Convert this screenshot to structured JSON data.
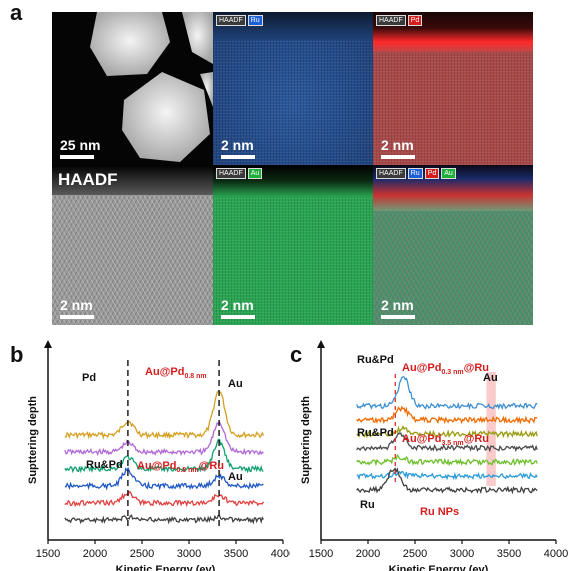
{
  "panel_a": {
    "letter": "a",
    "tiles": [
      {
        "name": "haadf-overview",
        "scale": "25 nm",
        "tags": []
      },
      {
        "name": "ru-map",
        "scale": "2 nm",
        "tags": [
          {
            "text": "HAADF",
            "color": "#3a3a3a"
          },
          {
            "text": "Ru",
            "color": "#1d5fd6"
          }
        ]
      },
      {
        "name": "pd-map",
        "scale": "2 nm",
        "tags": [
          {
            "text": "HAADF",
            "color": "#3a3a3a"
          },
          {
            "text": "Pd",
            "color": "#d61d1d"
          }
        ]
      },
      {
        "name": "haadf-lattice",
        "scale": "2 nm",
        "label": "HAADF",
        "tags": []
      },
      {
        "name": "au-map",
        "scale": "2 nm",
        "tags": [
          {
            "text": "HAADF",
            "color": "#3a3a3a"
          },
          {
            "text": "Au",
            "color": "#1fae3a"
          }
        ]
      },
      {
        "name": "overlay-map",
        "scale": "2 nm",
        "tags": [
          {
            "text": "HAADF",
            "color": "#3a3a3a"
          },
          {
            "text": "Ru",
            "color": "#1d5fd6"
          },
          {
            "text": "Pd",
            "color": "#d61d1d"
          },
          {
            "text": "Au",
            "color": "#1fae3a"
          }
        ]
      }
    ]
  },
  "chart_data": [
    {
      "type": "line",
      "panel": "b",
      "xlabel": "Kinetic Energy (ev)",
      "ylabel": "Supttering depth",
      "xlim": [
        1500,
        4000
      ],
      "xticks": [
        "1500",
        "2000",
        "2500",
        "3000",
        "3500",
        "4000"
      ],
      "dashed_lines_x": [
        2350,
        3320
      ],
      "annotations": [
        {
          "text": "Pd",
          "color": "#111111"
        },
        {
          "text": "Au@Pd",
          "sub": "0.8 nm",
          "color": "#d61d1d"
        },
        {
          "text": "Au",
          "color": "#111111"
        },
        {
          "text": "Ru&Pd",
          "color": "#111111"
        },
        {
          "text": "Au@Pd",
          "sub": "0.8 nm",
          "suffix": "@Ru",
          "color": "#d61d1d"
        },
        {
          "text": "Au",
          "color": "#111111"
        }
      ],
      "series": [
        {
          "color": "#d4a021",
          "offset": 0,
          "peaks": [
            {
              "x": 2350,
              "h": 14
            },
            {
              "x": 3320,
              "h": 44
            }
          ]
        },
        {
          "color": "#b068d6",
          "offset": 1,
          "peaks": [
            {
              "x": 2350,
              "h": 9
            },
            {
              "x": 3320,
              "h": 30
            }
          ]
        },
        {
          "color": "#12a070",
          "offset": 2,
          "peaks": [
            {
              "x": 2350,
              "h": 12
            },
            {
              "x": 3320,
              "h": 28
            }
          ]
        },
        {
          "color": "#2059c4",
          "offset": 3,
          "peaks": [
            {
              "x": 2350,
              "h": 16
            },
            {
              "x": 3320,
              "h": 10
            }
          ]
        },
        {
          "color": "#e04040",
          "offset": 4,
          "peaks": [
            {
              "x": 2350,
              "h": 10
            },
            {
              "x": 3320,
              "h": 8
            }
          ]
        },
        {
          "color": "#404040",
          "offset": 5,
          "peaks": [
            {
              "x": 2350,
              "h": 3
            },
            {
              "x": 3320,
              "h": 3
            }
          ]
        }
      ]
    },
    {
      "type": "line",
      "panel": "c",
      "xlabel": "Kinetic Energy (ev)",
      "ylabel": "Supttering depth",
      "xlim": [
        1500,
        4000
      ],
      "xticks": [
        "1500",
        "2000",
        "2500",
        "3000",
        "3500",
        "4000"
      ],
      "annotations": [
        {
          "text": "Ru&Pd",
          "color": "#111111"
        },
        {
          "text": "Au@Pd",
          "sub": "0.3 nm",
          "suffix": "@Ru",
          "color": "#d61d1d"
        },
        {
          "text": "Au",
          "color": "#111111"
        },
        {
          "text": "Ru&Pd",
          "color": "#111111"
        },
        {
          "text": "Au@Pd",
          "sub": "3.5 nm",
          "suffix": "@Ru",
          "color": "#d61d1d"
        },
        {
          "text": "Ru",
          "color": "#111111"
        },
        {
          "text": "Ru NPs",
          "color": "#d61d1d"
        }
      ],
      "highlight_band_x": [
        3260,
        3360
      ],
      "series": [
        {
          "color": "#3f8fd0",
          "offset": 0,
          "peaks": [
            {
              "x": 2380,
              "h": 28
            }
          ]
        },
        {
          "color": "#f06a00",
          "offset": 1,
          "peaks": [
            {
              "x": 2360,
              "h": 12
            }
          ]
        },
        {
          "color": "#9a9a10",
          "offset": 2,
          "peaks": [
            {
              "x": 2360,
              "h": 5
            }
          ]
        },
        {
          "color": "#4a4a4a",
          "offset": 3,
          "peaks": [
            {
              "x": 2340,
              "h": 14
            }
          ]
        },
        {
          "color": "#6cbf2a",
          "offset": 4,
          "peaks": [
            {
              "x": 2340,
              "h": 5
            }
          ]
        },
        {
          "color": "#2a9ad8",
          "offset": 5,
          "peaks": [
            {
              "x": 2340,
              "h": 3
            }
          ]
        },
        {
          "color": "#404040",
          "offset": 6,
          "peaks": [
            {
              "x": 2280,
              "h": 22
            }
          ]
        }
      ]
    }
  ]
}
